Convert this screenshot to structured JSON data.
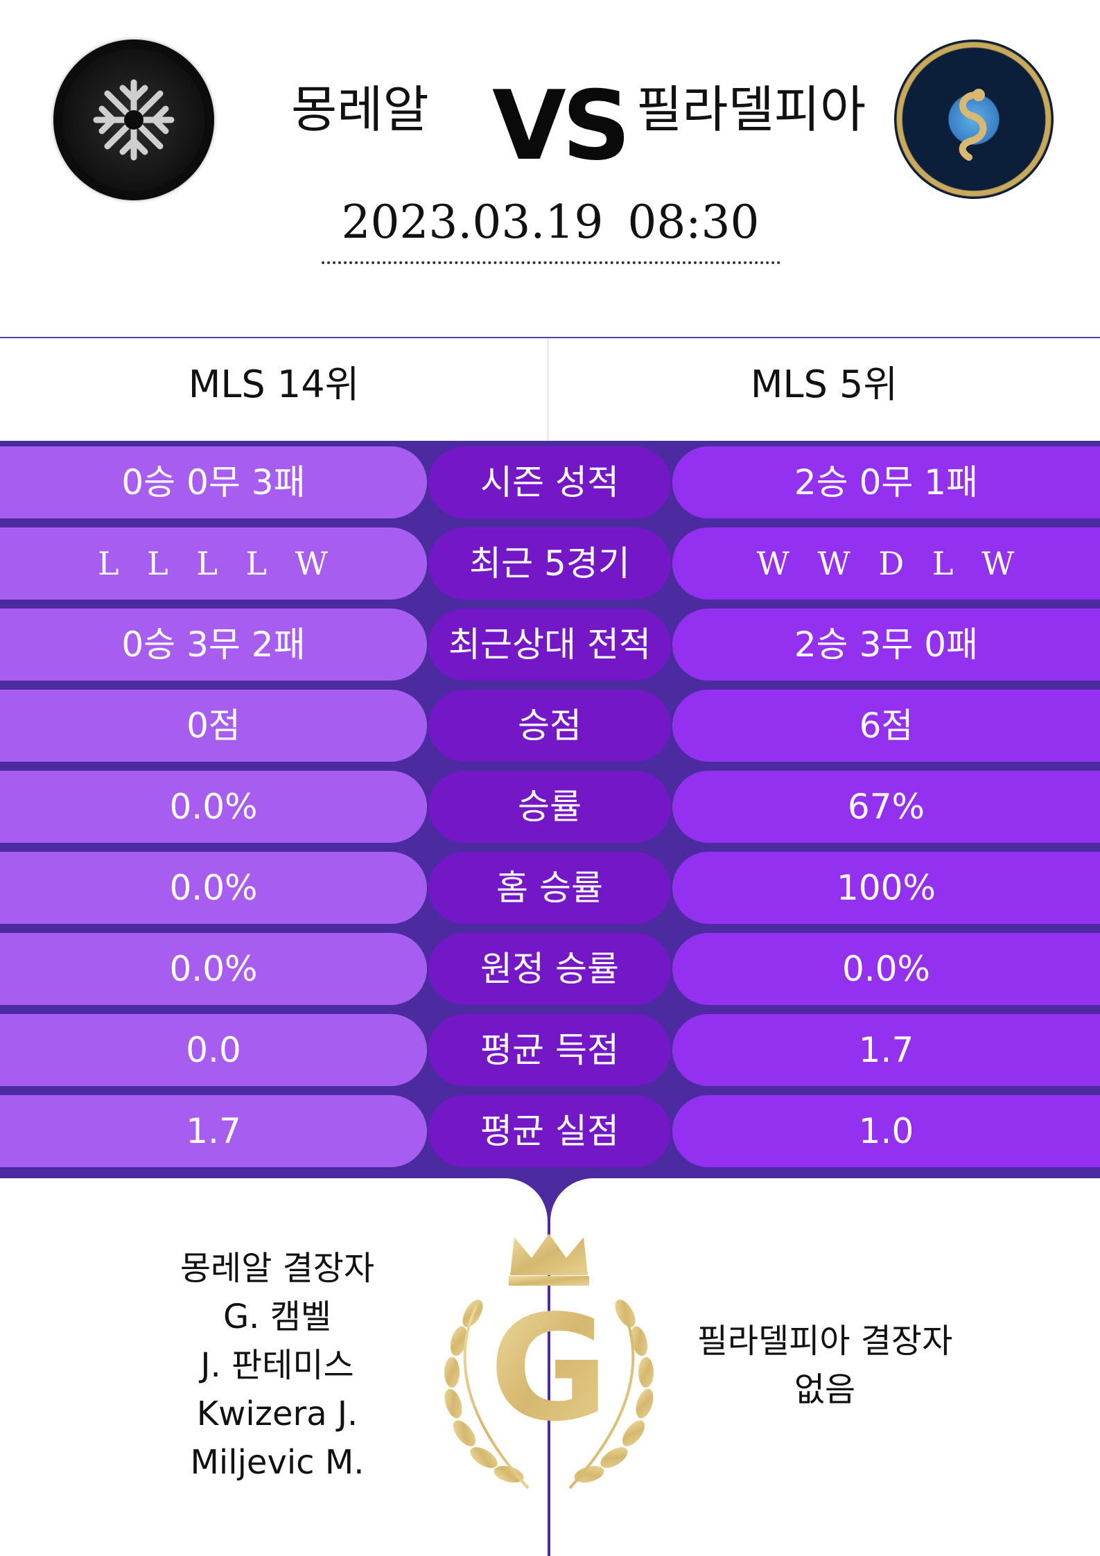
{
  "match": {
    "home_team": "몽레알",
    "away_team": "필라델피아",
    "vs_label": "VS",
    "datetime": "2023.03.19 08:30"
  },
  "logos": {
    "home": "cf-montreal-crest",
    "away": "philadelphia-union-crest"
  },
  "ranks": {
    "home": "MLS 14위",
    "away": "MLS 5위"
  },
  "stats": [
    {
      "label": "시즌 성적",
      "home": "0승 0무 3패",
      "away": "2승 0무 1패"
    },
    {
      "label": "최근 5경기",
      "home": "L L L L W",
      "away": "W W D L W"
    },
    {
      "label": "최근상대 전적",
      "home": "0승 3무 2패",
      "away": "2승 3무 0패"
    },
    {
      "label": "승점",
      "home": "0점",
      "away": "6점"
    },
    {
      "label": "승률",
      "home": "0.0%",
      "away": "67%"
    },
    {
      "label": "홈 승률",
      "home": "0.0%",
      "away": "100%"
    },
    {
      "label": "원정 승률",
      "home": "0.0%",
      "away": "0.0%"
    },
    {
      "label": "평균 득점",
      "home": "0.0",
      "away": "1.7"
    },
    {
      "label": "평균 실점",
      "home": "1.7",
      "away": "1.0"
    }
  ],
  "absentees": {
    "home": [
      "몽레알 결장자",
      "G. 캠벨",
      "J. 판테미스",
      "Kwizera J.",
      "Miljevic M."
    ],
    "away": [
      "필라델피아 결장자",
      "없음"
    ]
  },
  "emblem": {
    "letter": "G",
    "icon": "crown-laurel-emblem"
  },
  "colors": {
    "stats_background": "#4b2b9f",
    "home_pill": "#a75df0",
    "label_pill": "#7317c7",
    "away_pill": "#9431f0",
    "emblem_gold": "#d9bf7c"
  }
}
